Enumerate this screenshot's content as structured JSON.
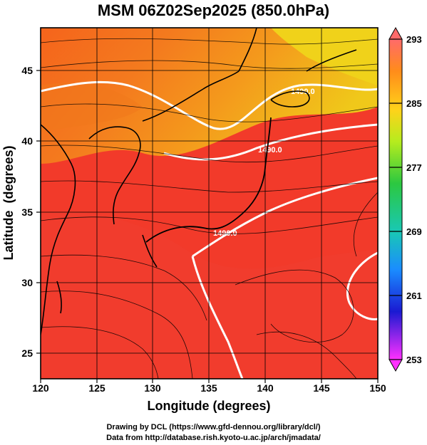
{
  "title": "MSM 06Z02Sep2025 (850.0hPa)",
  "chart_data": {
    "type": "heatmap",
    "map_region": "Japan and surrounding seas",
    "xlabel": "Longitude (degrees)",
    "ylabel": "Latitude  (degrees)",
    "xlim": [
      120,
      150
    ],
    "ylim": [
      22.5,
      47.5
    ],
    "xticks": [
      "120",
      "125",
      "130",
      "135",
      "140",
      "145",
      "150"
    ],
    "yticks": [
      "25",
      "30",
      "35",
      "40",
      "45"
    ],
    "grid": true,
    "colorbar": {
      "range": [
        253,
        293
      ],
      "ticks": [
        "293",
        "285",
        "277",
        "269",
        "261",
        "253"
      ],
      "colors": [
        "#ff6a6a",
        "#ff8c1a",
        "#ffd21a",
        "#d7f020",
        "#2cc840",
        "#19c8b4",
        "#1a8cff",
        "#1a1ad2",
        "#b41ae6",
        "#ff30ff"
      ]
    },
    "contour_labels": [
      "1490.0",
      "1490.0",
      "1490.0"
    ],
    "field_description": "temperature shading with streamlines and white height contours",
    "colors": {
      "warm": "#f23a2a",
      "orange": "#f47a1e",
      "yellow": "#f0d21a",
      "contour": "#ffffff",
      "coast": "#000000"
    }
  },
  "credits": {
    "line1": "Drawing by DCL (https://www.gfd-dennou.org/library/dcl/)",
    "line2": "Data from http://database.rish.kyoto-u.ac.jp/arch/jmadata/"
  }
}
